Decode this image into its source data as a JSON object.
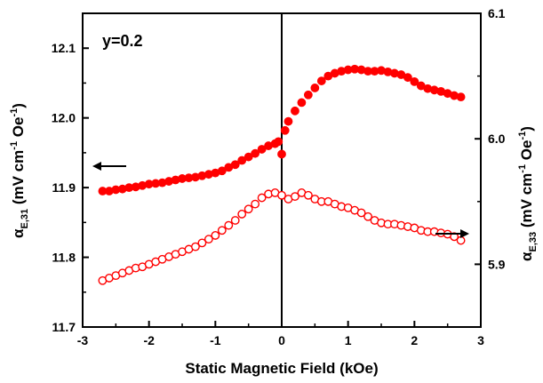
{
  "chart_data": {
    "type": "scatter",
    "annotation": "y=0.2",
    "xlabel": "Static Magnetic Field (kOe)",
    "ylabel_left": {
      "base": "α",
      "sub": "E,31",
      "rest1": " (mV cm",
      "sup": "-1",
      "rest2": " Oe",
      "sup2": "-1",
      "rest3": ")"
    },
    "ylabel_right": {
      "base": "α",
      "sub": "E,33",
      "rest1": " (mV cm",
      "sup": "-1",
      "rest2": " Oe",
      "sup2": "-1",
      "rest3": ")"
    },
    "xlim": [
      -3,
      3
    ],
    "ylim_left": [
      11.7,
      12.15
    ],
    "ylim_right": [
      5.85,
      6.1
    ],
    "x_ticks": [
      "-3",
      "-2",
      "-1",
      "0",
      "1",
      "2",
      "3"
    ],
    "y_left_ticks": [
      "11.7",
      "11.8",
      "11.9",
      "12.0",
      "12.1"
    ],
    "y_right_ticks": [
      "5.9",
      "6.0",
      "6.1"
    ],
    "zero_line_x": 0,
    "color": "#ff0000",
    "series": [
      {
        "marker": "filled-circle",
        "axis": "left",
        "arrow": "left",
        "x": [
          -2.7,
          -2.6,
          -2.5,
          -2.4,
          -2.3,
          -2.2,
          -2.1,
          -2.0,
          -1.9,
          -1.8,
          -1.7,
          -1.6,
          -1.5,
          -1.4,
          -1.3,
          -1.2,
          -1.1,
          -1.0,
          -0.9,
          -0.8,
          -0.7,
          -0.6,
          -0.5,
          -0.4,
          -0.3,
          -0.2,
          -0.1,
          -0.05,
          0.0,
          0.05,
          0.1,
          0.2,
          0.3,
          0.4,
          0.5,
          0.6,
          0.7,
          0.8,
          0.9,
          1.0,
          1.1,
          1.2,
          1.3,
          1.4,
          1.5,
          1.6,
          1.7,
          1.8,
          1.9,
          2.0,
          2.1,
          2.2,
          2.3,
          2.4,
          2.5,
          2.6,
          2.7
        ],
        "y": [
          11.895,
          11.895,
          11.897,
          11.898,
          11.9,
          11.901,
          11.903,
          11.905,
          11.906,
          11.907,
          11.909,
          11.911,
          11.913,
          11.914,
          11.915,
          11.917,
          11.919,
          11.921,
          11.924,
          11.929,
          11.933,
          11.939,
          11.944,
          11.949,
          11.955,
          11.96,
          11.963,
          11.966,
          11.948,
          11.982,
          11.995,
          12.01,
          12.022,
          12.033,
          12.043,
          12.053,
          12.06,
          12.064,
          12.067,
          12.069,
          12.07,
          12.069,
          12.067,
          12.067,
          12.068,
          12.066,
          12.064,
          12.062,
          12.058,
          12.052,
          12.046,
          12.042,
          12.04,
          12.038,
          12.035,
          12.032,
          12.03
        ]
      },
      {
        "marker": "open-circle",
        "axis": "right",
        "arrow": "right",
        "x": [
          -2.7,
          -2.6,
          -2.5,
          -2.4,
          -2.3,
          -2.2,
          -2.1,
          -2.0,
          -1.9,
          -1.8,
          -1.7,
          -1.6,
          -1.5,
          -1.4,
          -1.3,
          -1.2,
          -1.1,
          -1.0,
          -0.9,
          -0.8,
          -0.7,
          -0.6,
          -0.5,
          -0.4,
          -0.3,
          -0.2,
          -0.1,
          0.0,
          0.1,
          0.2,
          0.3,
          0.4,
          0.5,
          0.6,
          0.7,
          0.8,
          0.9,
          1.0,
          1.1,
          1.2,
          1.3,
          1.4,
          1.5,
          1.6,
          1.7,
          1.8,
          1.9,
          2.0,
          2.1,
          2.2,
          2.3,
          2.4,
          2.5,
          2.6,
          2.7
        ],
        "y": [
          5.887,
          5.889,
          5.891,
          5.893,
          5.895,
          5.897,
          5.898,
          5.9,
          5.902,
          5.904,
          5.906,
          5.908,
          5.91,
          5.912,
          5.914,
          5.917,
          5.92,
          5.923,
          5.927,
          5.931,
          5.935,
          5.94,
          5.944,
          5.948,
          5.953,
          5.956,
          5.957,
          5.955,
          5.952,
          5.954,
          5.957,
          5.955,
          5.952,
          5.95,
          5.95,
          5.948,
          5.946,
          5.945,
          5.943,
          5.941,
          5.938,
          5.935,
          5.933,
          5.932,
          5.932,
          5.931,
          5.93,
          5.929,
          5.927,
          5.926,
          5.926,
          5.925,
          5.924,
          5.922,
          5.919
        ]
      }
    ]
  }
}
